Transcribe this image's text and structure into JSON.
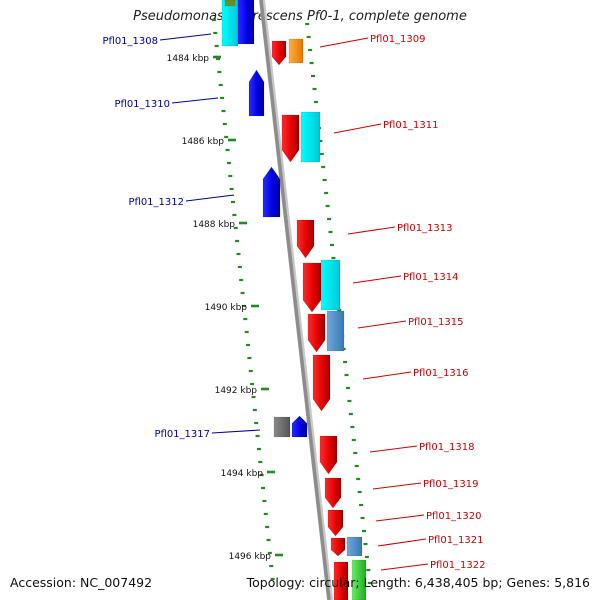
{
  "title": "Pseudomonas fluorescens Pf0-1, complete genome",
  "footer": {
    "accession": "Accession: NC_007492",
    "stats": "Topology: circular; Length: 6,438,405 bp; Genes: 5,816"
  },
  "colors": {
    "backbone": "#8c8c8c",
    "tick": "#1e8c1e",
    "forward_label": "#cc0000",
    "reverse_label": "#0000aa"
  },
  "ruler": [
    "1484 kbp",
    "1486 kbp",
    "1488 kbp",
    "1490 kbp",
    "1492 kbp",
    "1494 kbp",
    "1496 kbp"
  ],
  "genes": [
    {
      "label": "Pfl01_1308",
      "strand": "reverse"
    },
    {
      "label": "Pfl01_1309",
      "strand": "forward"
    },
    {
      "label": "Pfl01_1310",
      "strand": "reverse"
    },
    {
      "label": "Pfl01_1311",
      "strand": "forward"
    },
    {
      "label": "Pfl01_1312",
      "strand": "reverse"
    },
    {
      "label": "Pfl01_1313",
      "strand": "forward"
    },
    {
      "label": "Pfl01_1314",
      "strand": "forward"
    },
    {
      "label": "Pfl01_1315",
      "strand": "forward"
    },
    {
      "label": "Pfl01_1316",
      "strand": "forward"
    },
    {
      "label": "Pfl01_1317",
      "strand": "reverse"
    },
    {
      "label": "Pfl01_1318",
      "strand": "forward"
    },
    {
      "label": "Pfl01_1319",
      "strand": "forward"
    },
    {
      "label": "Pfl01_1320",
      "strand": "forward"
    },
    {
      "label": "Pfl01_1321",
      "strand": "forward"
    },
    {
      "label": "Pfl01_1322",
      "strand": "forward"
    }
  ]
}
